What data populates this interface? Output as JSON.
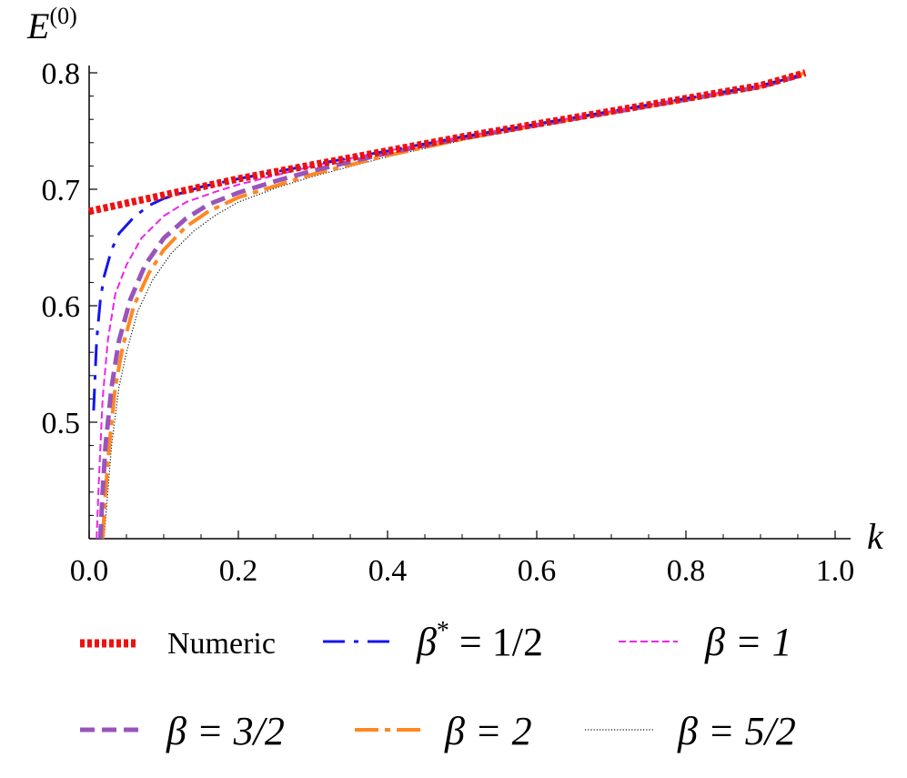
{
  "chart_data": {
    "type": "line",
    "title": "",
    "ylabel": "E",
    "ylabel_sup": "(0)",
    "xlabel": "k",
    "xlim": [
      0,
      1.0
    ],
    "ylim": [
      0.4,
      0.8
    ],
    "x_ticks": [
      "0.0",
      "0.2",
      "0.4",
      "0.6",
      "0.8",
      "1.0"
    ],
    "x_tick_values": [
      0,
      0.2,
      0.4,
      0.6,
      0.8,
      1.0
    ],
    "y_ticks": [
      "0.5",
      "0.6",
      "0.7",
      "0.8"
    ],
    "y_tick_values": [
      0.5,
      0.6,
      0.7,
      0.8
    ],
    "grid": false,
    "legend_position": "bottom",
    "series": [
      {
        "name": "Numeric",
        "color": "#ee1111",
        "style": "dotted-thick",
        "points": [
          [
            0,
            0.681
          ],
          [
            0.1,
            0.695
          ],
          [
            0.2,
            0.709
          ],
          [
            0.3,
            0.721
          ],
          [
            0.4,
            0.733
          ],
          [
            0.5,
            0.745
          ],
          [
            0.6,
            0.756
          ],
          [
            0.7,
            0.767
          ],
          [
            0.8,
            0.778
          ],
          [
            0.9,
            0.789
          ],
          [
            0.96,
            0.8
          ]
        ]
      },
      {
        "name": "β* = 1/2",
        "color": "#1515ee",
        "style": "dashdot",
        "points": [
          [
            0.006,
            0.51
          ],
          [
            0.01,
            0.57
          ],
          [
            0.015,
            0.605
          ],
          [
            0.02,
            0.625
          ],
          [
            0.03,
            0.648
          ],
          [
            0.04,
            0.662
          ],
          [
            0.06,
            0.676
          ],
          [
            0.08,
            0.686
          ],
          [
            0.1,
            0.692
          ],
          [
            0.15,
            0.702
          ],
          [
            0.2,
            0.709
          ],
          [
            0.3,
            0.721
          ],
          [
            0.4,
            0.733
          ],
          [
            0.5,
            0.745
          ],
          [
            0.6,
            0.756
          ],
          [
            0.7,
            0.767
          ],
          [
            0.8,
            0.778
          ],
          [
            0.9,
            0.789
          ],
          [
            0.95,
            0.797
          ]
        ]
      },
      {
        "name": "β = 1",
        "color": "#ee22ee",
        "style": "dashed-thin",
        "points": [
          [
            0.01,
            0.4
          ],
          [
            0.013,
            0.45
          ],
          [
            0.018,
            0.52
          ],
          [
            0.025,
            0.57
          ],
          [
            0.035,
            0.61
          ],
          [
            0.05,
            0.635
          ],
          [
            0.07,
            0.658
          ],
          [
            0.1,
            0.677
          ],
          [
            0.13,
            0.689
          ],
          [
            0.17,
            0.698
          ],
          [
            0.2,
            0.704
          ],
          [
            0.25,
            0.712
          ],
          [
            0.3,
            0.72
          ],
          [
            0.4,
            0.733
          ],
          [
            0.5,
            0.745
          ],
          [
            0.6,
            0.756
          ],
          [
            0.7,
            0.767
          ],
          [
            0.8,
            0.778
          ],
          [
            0.9,
            0.789
          ],
          [
            0.95,
            0.797
          ]
        ]
      },
      {
        "name": "β = 3/2",
        "color": "#9955bb",
        "style": "dashed-thick",
        "points": [
          [
            0.015,
            0.4
          ],
          [
            0.018,
            0.44
          ],
          [
            0.022,
            0.48
          ],
          [
            0.03,
            0.53
          ],
          [
            0.04,
            0.57
          ],
          [
            0.055,
            0.605
          ],
          [
            0.075,
            0.635
          ],
          [
            0.1,
            0.658
          ],
          [
            0.13,
            0.675
          ],
          [
            0.16,
            0.687
          ],
          [
            0.2,
            0.697
          ],
          [
            0.25,
            0.707
          ],
          [
            0.3,
            0.716
          ],
          [
            0.4,
            0.731
          ],
          [
            0.5,
            0.744
          ],
          [
            0.6,
            0.755
          ],
          [
            0.7,
            0.766
          ],
          [
            0.8,
            0.777
          ],
          [
            0.9,
            0.788
          ],
          [
            0.95,
            0.797
          ]
        ]
      },
      {
        "name": "β = 2",
        "color": "#ff8822",
        "style": "dashdot-thick",
        "points": [
          [
            0.018,
            0.4
          ],
          [
            0.022,
            0.44
          ],
          [
            0.027,
            0.48
          ],
          [
            0.035,
            0.53
          ],
          [
            0.045,
            0.565
          ],
          [
            0.06,
            0.6
          ],
          [
            0.08,
            0.628
          ],
          [
            0.1,
            0.648
          ],
          [
            0.13,
            0.668
          ],
          [
            0.16,
            0.681
          ],
          [
            0.2,
            0.693
          ],
          [
            0.25,
            0.703
          ],
          [
            0.3,
            0.713
          ],
          [
            0.4,
            0.729
          ],
          [
            0.5,
            0.743
          ],
          [
            0.6,
            0.755
          ],
          [
            0.7,
            0.766
          ],
          [
            0.8,
            0.777
          ],
          [
            0.9,
            0.788
          ],
          [
            0.96,
            0.8
          ]
        ]
      },
      {
        "name": "β = 5/2",
        "color": "#111111",
        "style": "dotted-thin",
        "points": [
          [
            0.02,
            0.4
          ],
          [
            0.025,
            0.44
          ],
          [
            0.03,
            0.48
          ],
          [
            0.04,
            0.53
          ],
          [
            0.05,
            0.56
          ],
          [
            0.065,
            0.595
          ],
          [
            0.085,
            0.622
          ],
          [
            0.11,
            0.645
          ],
          [
            0.14,
            0.664
          ],
          [
            0.17,
            0.678
          ],
          [
            0.2,
            0.689
          ],
          [
            0.25,
            0.701
          ],
          [
            0.3,
            0.711
          ],
          [
            0.4,
            0.728
          ],
          [
            0.5,
            0.742
          ],
          [
            0.6,
            0.754
          ],
          [
            0.7,
            0.766
          ],
          [
            0.8,
            0.777
          ],
          [
            0.9,
            0.788
          ],
          [
            0.96,
            0.8
          ]
        ]
      }
    ]
  },
  "legend": {
    "numeric": "Numeric",
    "b_half_lhs": "β",
    "b_half_sup": "*",
    "b_half_rhs": " = 1/2",
    "b1": "β = 1",
    "b32": "β = 3/2",
    "b2": "β = 2",
    "b52": "β = 5/2"
  }
}
